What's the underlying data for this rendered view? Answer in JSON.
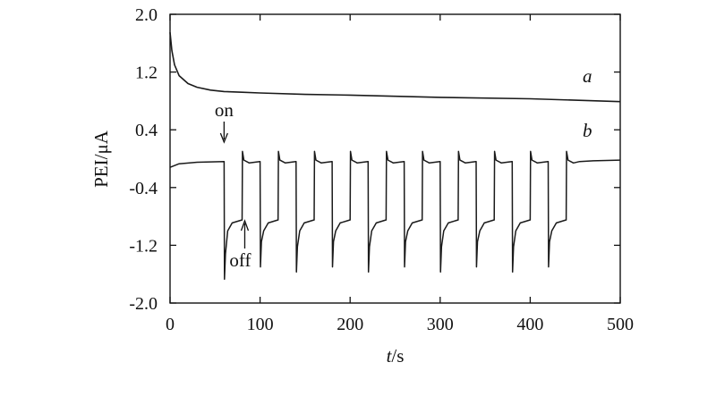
{
  "chart_data": {
    "type": "line",
    "xlabel": {
      "var": "t",
      "unit": "/s"
    },
    "ylabel": "PEI/μA",
    "xlim": [
      0,
      500
    ],
    "ylim": [
      -2.0,
      2.0
    ],
    "xticks": [
      0,
      100,
      200,
      300,
      400,
      500
    ],
    "xtick_labels": [
      "0",
      "100",
      "200",
      "300",
      "400",
      "500"
    ],
    "yticks": [
      -2.0,
      -1.2,
      -0.4,
      0.4,
      1.2,
      2.0
    ],
    "ytick_labels": [
      "-2.0",
      "-1.2",
      "-0.4",
      "0.4",
      "1.2",
      "2.0"
    ],
    "grid": false,
    "series": [
      {
        "name": "a",
        "x": [
          0,
          2,
          5,
          10,
          20,
          30,
          45,
          60,
          80,
          100,
          150,
          200,
          300,
          400,
          450,
          500
        ],
        "y": [
          1.75,
          1.5,
          1.3,
          1.15,
          1.04,
          0.99,
          0.95,
          0.93,
          0.92,
          0.91,
          0.89,
          0.88,
          0.85,
          0.83,
          0.81,
          0.79
        ]
      },
      {
        "name": "b",
        "light_on_times": [
          60,
          100,
          140,
          180,
          220,
          260,
          300,
          340,
          380,
          420
        ],
        "light_off_times": [
          80,
          120,
          160,
          200,
          240,
          280,
          320,
          360,
          400,
          440
        ],
        "dark_current": -0.04,
        "on_spike": -1.55,
        "on_plateau": -0.85,
        "off_overshoot": 0.02
      }
    ],
    "annotations": [
      {
        "text": "on",
        "x": 60
      },
      {
        "text": "off",
        "x": 80
      }
    ]
  }
}
